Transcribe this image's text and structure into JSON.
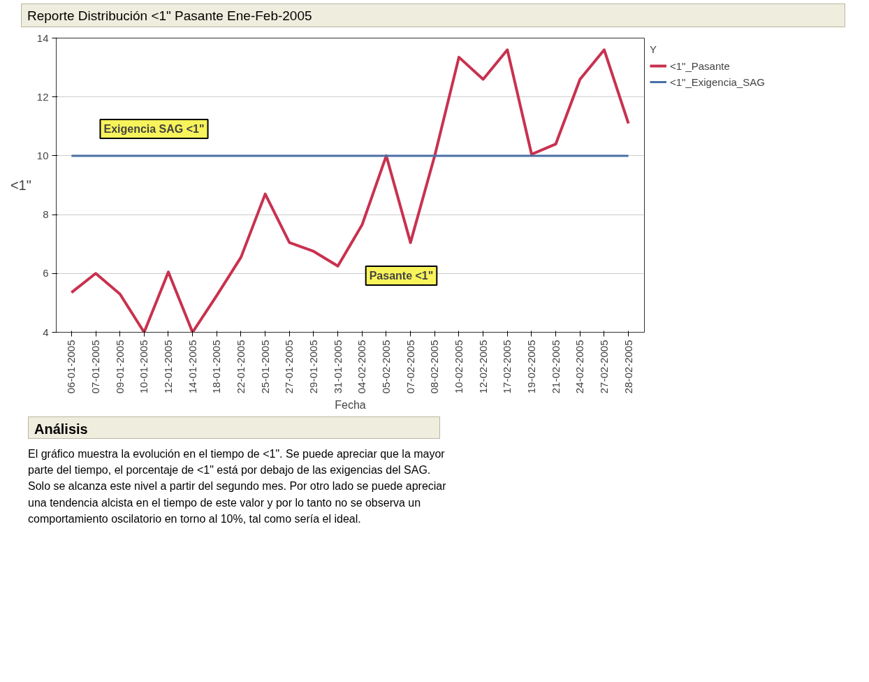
{
  "chart_data": {
    "type": "line",
    "title": "Reporte Distribución <1\" Pasante Ene-Feb-2005",
    "xlabel": "Fecha",
    "ylabel": "<1\"",
    "legend_title": "Y",
    "categories": [
      "06-01-2005",
      "07-01-2005",
      "09-01-2005",
      "10-01-2005",
      "12-01-2005",
      "14-01-2005",
      "18-01-2005",
      "22-01-2005",
      "25-01-2005",
      "27-01-2005",
      "29-01-2005",
      "31-01-2005",
      "04-02-2005",
      "05-02-2005",
      "07-02-2005",
      "08-02-2005",
      "10-02-2005",
      "12-02-2005",
      "17-02-2005",
      "19-02-2005",
      "21-02-2005",
      "24-02-2005",
      "27-02-2005",
      "28-02-2005"
    ],
    "series": [
      {
        "name": "<1\"_Pasante",
        "color": "#c8324f",
        "values": [
          5.35,
          6.0,
          5.3,
          4.0,
          6.05,
          4.0,
          5.25,
          6.55,
          8.7,
          7.05,
          6.75,
          6.25,
          7.65,
          10.0,
          7.05,
          10.0,
          13.35,
          12.6,
          13.6,
          10.05,
          10.4,
          12.6,
          13.6,
          11.1
        ]
      },
      {
        "name": "<1\"_Exigencia_SAG",
        "color": "#4a6fa5",
        "values": [
          10,
          10,
          10,
          10,
          10,
          10,
          10,
          10,
          10,
          10,
          10,
          10,
          10,
          10,
          10,
          10,
          10,
          10,
          10,
          10,
          10,
          10,
          10,
          10
        ]
      }
    ],
    "ylim": [
      4,
      14
    ],
    "yticks": [
      4,
      6,
      8,
      10,
      12,
      14
    ],
    "grid": "y",
    "legend": "right",
    "line_style": "solid",
    "marker": "none",
    "annotations": [
      "Exigencia SAG <1\"",
      "Pasante <1\"",
      "Análisis",
      "El gráfico muestra la evolución en el tiempo de <1\". Se puede apreciar que la mayor parte del tiempo, el  porcentaje de <1\" está por debajo de las exigencias del SAG.  Solo se alcanza este nivel a partir del segundo mes.  Por otro lado se puede apreciar una tendencia alcista en el tiempo de este valor y por lo tanto no se observa un comportamiento oscilatorio en torno al 10%, tal como sería el ideal."
    ]
  }
}
